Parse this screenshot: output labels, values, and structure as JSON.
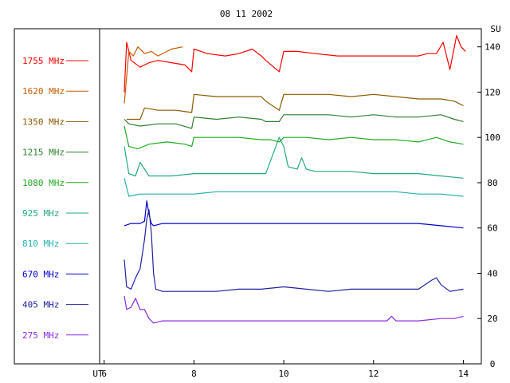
{
  "chart_data": {
    "type": "line",
    "title": "08 11 2002",
    "xlabel": "UT",
    "ylabel": "SU",
    "xlim": [
      4.0,
      14.4
    ],
    "ylim": [
      0,
      148
    ],
    "xticks": [
      6,
      8,
      10,
      12,
      14
    ],
    "yticks": [
      0,
      20,
      40,
      60,
      80,
      100,
      120,
      140
    ],
    "grid": false,
    "legend_position": "left",
    "series": [
      {
        "name": "1755 MHz",
        "color": "#ff0000",
        "x": [
          6.45,
          6.5,
          6.6,
          6.8,
          7.0,
          7.2,
          7.5,
          7.8,
          7.95,
          8.0,
          8.3,
          8.7,
          9.0,
          9.3,
          9.5,
          9.6,
          9.9,
          10.0,
          10.3,
          10.7,
          11.2,
          11.8,
          12.4,
          13.0,
          13.2,
          13.4,
          13.55,
          13.7,
          13.85,
          13.95,
          14.05
        ],
        "y": [
          120,
          142,
          134,
          131,
          133,
          134,
          133,
          132,
          129,
          139,
          137,
          136,
          137,
          139,
          136,
          134,
          129,
          138,
          138,
          137,
          136,
          136,
          136,
          136,
          137,
          137,
          142,
          130,
          145,
          140,
          138
        ]
      },
      {
        "name": "1620 MHz",
        "color": "#c85a00",
        "x": [
          6.45,
          6.55,
          6.65,
          6.75,
          6.9,
          7.05,
          7.2,
          7.5,
          7.75
        ],
        "y": [
          115,
          138,
          136,
          140,
          137,
          138,
          136,
          139,
          140
        ]
      },
      {
        "name": "1350 MHz",
        "color": "#8b5a00",
        "x": [
          6.5,
          6.8,
          6.9,
          7.2,
          7.6,
          7.95,
          8.0,
          8.5,
          9.0,
          9.5,
          9.6,
          9.9,
          10.0,
          10.5,
          11.0,
          11.5,
          12.0,
          12.5,
          13.0,
          13.5,
          13.8,
          14.0
        ],
        "y": [
          108,
          108,
          113,
          112,
          112,
          111,
          119,
          118,
          118,
          118,
          116,
          112,
          119,
          119,
          119,
          118,
          119,
          118,
          117,
          117,
          116,
          114
        ]
      },
      {
        "name": "1215 MHz",
        "color": "#2e7d2e",
        "x": [
          6.45,
          6.55,
          6.8,
          7.2,
          7.6,
          7.95,
          8.0,
          8.5,
          9.0,
          9.5,
          9.6,
          9.9,
          10.0,
          10.5,
          11.0,
          11.5,
          12.0,
          12.5,
          13.0,
          13.5,
          13.8,
          14.0
        ],
        "y": [
          108,
          106,
          105,
          106,
          106,
          104,
          109,
          108,
          109,
          108,
          107,
          107,
          110,
          110,
          110,
          109,
          110,
          109,
          109,
          110,
          108,
          107
        ]
      },
      {
        "name": "1080 MHz",
        "color": "#1eaa1e",
        "x": [
          6.45,
          6.55,
          6.75,
          7.0,
          7.4,
          7.8,
          7.95,
          8.0,
          8.5,
          9.0,
          9.5,
          9.7,
          9.9,
          10.0,
          10.5,
          11.0,
          11.5,
          12.0,
          12.5,
          13.0,
          13.4,
          13.7,
          14.0
        ],
        "y": [
          105,
          96,
          95,
          97,
          98,
          97,
          96,
          100,
          100,
          100,
          99,
          99,
          98,
          100,
          100,
          99,
          100,
          99,
          99,
          98,
          100,
          98,
          97
        ]
      },
      {
        "name": "925 MHz",
        "color": "#22aa7a",
        "x": [
          6.45,
          6.55,
          6.7,
          6.8,
          7.0,
          7.5,
          8.0,
          8.5,
          9.0,
          9.5,
          9.6,
          9.9,
          10.0,
          10.1,
          10.3,
          10.4,
          10.5,
          10.7,
          11.0,
          11.5,
          12.0,
          12.5,
          13.0,
          13.5,
          14.0
        ],
        "y": [
          96,
          84,
          83,
          89,
          83,
          83,
          84,
          84,
          84,
          84,
          84,
          100,
          96,
          87,
          86,
          91,
          86,
          85,
          85,
          85,
          84,
          84,
          84,
          83,
          82
        ]
      },
      {
        "name": "810 MHz",
        "color": "#20b2aa",
        "x": [
          6.45,
          6.55,
          6.8,
          7.0,
          7.5,
          8.0,
          8.5,
          9.0,
          9.5,
          10.0,
          10.5,
          11.0,
          11.5,
          12.0,
          12.5,
          13.0,
          13.5,
          14.0
        ],
        "y": [
          82,
          74,
          75,
          75,
          75,
          75,
          76,
          76,
          76,
          76,
          76,
          76,
          76,
          76,
          76,
          75,
          75,
          74
        ]
      },
      {
        "name": "670 MHz",
        "color": "#0000cd",
        "x": [
          6.45,
          6.6,
          6.8,
          6.9,
          6.95,
          7.0,
          7.05,
          7.1,
          7.3,
          7.6,
          8.0,
          8.5,
          9.0,
          9.5,
          10.0,
          10.5,
          11.0,
          11.5,
          12.0,
          12.5,
          13.0,
          13.5,
          14.0
        ],
        "y": [
          61,
          62,
          62,
          63,
          72,
          66,
          62,
          61,
          62,
          62,
          62,
          62,
          62,
          62,
          62,
          62,
          62,
          62,
          62,
          62,
          62,
          61,
          60
        ]
      },
      {
        "name": "405 MHz",
        "color": "#2020a0",
        "x": [
          6.45,
          6.5,
          6.6,
          6.7,
          6.8,
          6.9,
          6.95,
          7.0,
          7.05,
          7.1,
          7.15,
          7.3,
          7.6,
          8.0,
          8.5,
          9.0,
          9.5,
          10.0,
          10.5,
          11.0,
          11.5,
          12.0,
          12.5,
          13.0,
          13.3,
          13.4,
          13.5,
          13.7,
          14.0
        ],
        "y": [
          46,
          34,
          33,
          38,
          42,
          55,
          64,
          68,
          58,
          40,
          33,
          32,
          32,
          32,
          32,
          33,
          33,
          34,
          33,
          32,
          33,
          33,
          33,
          33,
          37,
          38,
          35,
          32,
          33
        ]
      },
      {
        "name": "275 MHz",
        "color": "#8a2be2",
        "x": [
          6.45,
          6.5,
          6.6,
          6.7,
          6.8,
          6.9,
          7.0,
          7.1,
          7.3,
          7.6,
          8.0,
          8.5,
          9.0,
          9.5,
          10.0,
          10.5,
          11.0,
          11.5,
          12.0,
          12.3,
          12.4,
          12.5,
          13.0,
          13.5,
          13.8,
          14.0
        ],
        "y": [
          30,
          24,
          25,
          29,
          24,
          24,
          20,
          18,
          19,
          19,
          19,
          19,
          19,
          19,
          19,
          19,
          19,
          19,
          19,
          19,
          21,
          19,
          19,
          20,
          20,
          21
        ]
      }
    ]
  }
}
